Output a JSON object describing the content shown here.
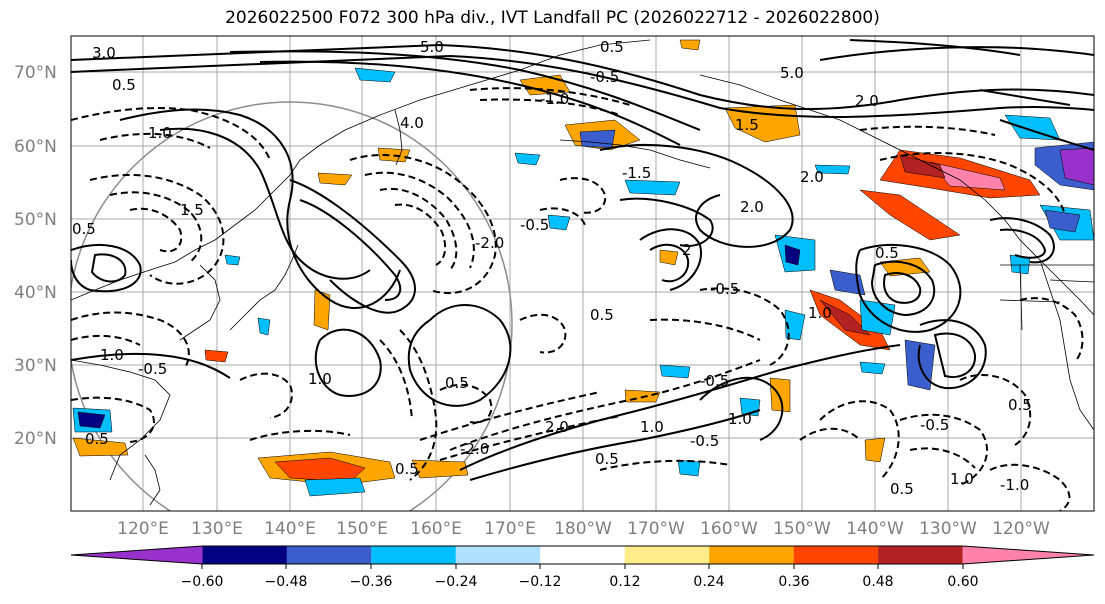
{
  "title": "2026022500 F072 300 hPa div., IVT Landfall PC (2026022712 - 2026022800)",
  "map": {
    "lat_labels": [
      "70°N",
      "60°N",
      "50°N",
      "40°N",
      "30°N",
      "20°N"
    ],
    "lon_labels": [
      "120°E",
      "130°E",
      "140°E",
      "150°E",
      "160°E",
      "170°E",
      "180°W",
      "170°W",
      "160°W",
      "150°W",
      "140°W",
      "130°W",
      "120°W"
    ],
    "contour_labels": [
      "3.0",
      "5.0",
      "0.5",
      "5.0",
      "2.0",
      "-0.5",
      "0.5",
      "1.0",
      "-1.0",
      "4.0",
      "1.5",
      "-1.5",
      "2.0",
      "-0.5",
      "0.5",
      "1.5",
      "2.0",
      "-2.0",
      "2",
      "-0.5",
      "0.5",
      "1.0",
      "0.5",
      "1.0",
      "-0.5",
      "1.0",
      "0.5",
      "-0.5",
      "0.5",
      "1.0",
      "-0.5",
      "0.5",
      "1.0",
      "-0.5",
      "1.0",
      "-1.0",
      "0.5",
      "0.5",
      "2.0",
      "-2.0",
      "0.5"
    ]
  },
  "colorbar": {
    "ticks": [
      "−0.60",
      "−0.48",
      "−0.36",
      "−0.24",
      "−0.12",
      "0.12",
      "0.24",
      "0.36",
      "0.48",
      "0.60"
    ],
    "colors": [
      "#9932cc",
      "#000080",
      "#3a5fcd",
      "#00bfff",
      "#b0e2ff",
      "#ffffff",
      "#ffec8b",
      "#ffa500",
      "#ff4500",
      "#b22222",
      "#ff82ab"
    ]
  }
}
